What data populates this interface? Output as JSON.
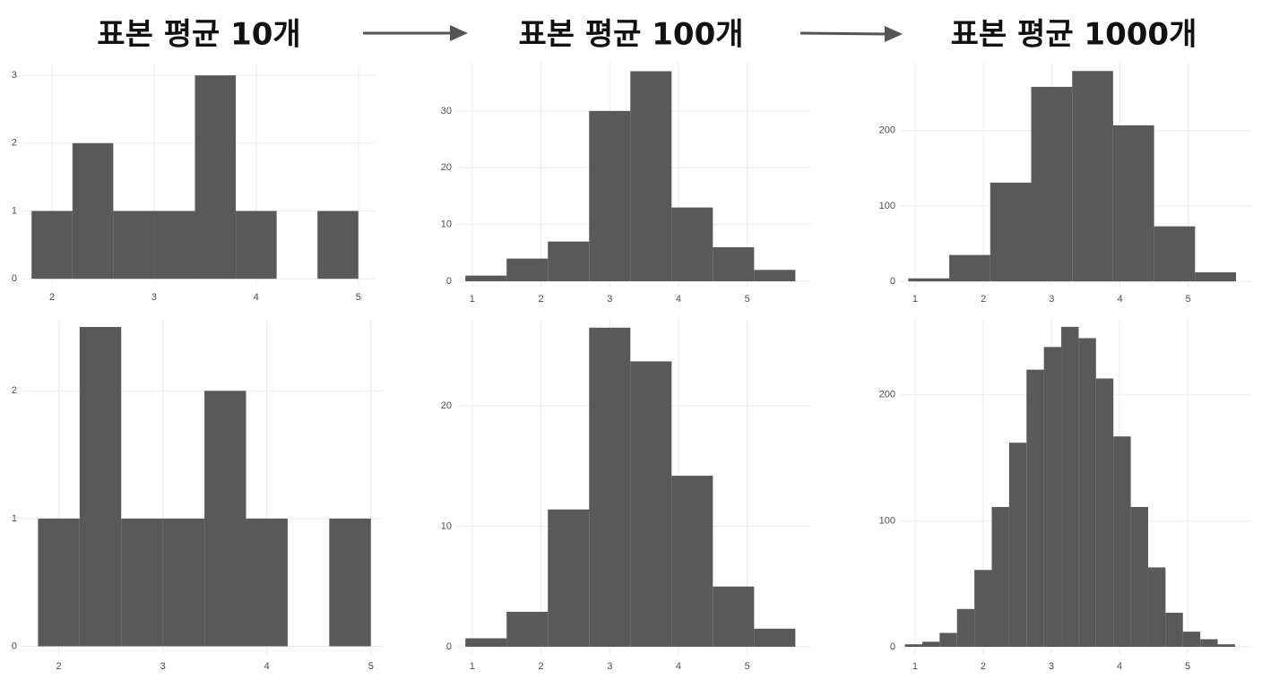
{
  "titles": [
    "표본 평균 10개",
    "표본 평균 100개",
    "표본 평균 1000개"
  ],
  "chart_data": [
    {
      "type": "histogram",
      "color": "#595959",
      "grid": true,
      "bins": [
        1.8,
        2.2,
        2.6,
        3.0,
        3.4,
        3.8,
        4.2,
        4.6,
        5.0
      ],
      "values": [
        1,
        2,
        1,
        1,
        3,
        1,
        0,
        1
      ],
      "xlim": [
        1.71,
        5.16
      ],
      "ylim": [
        -0.09,
        3.16
      ],
      "xticks": [
        2,
        3,
        4,
        5
      ],
      "yticks": [
        0,
        1,
        2,
        3
      ]
    },
    {
      "type": "histogram",
      "color": "#595959",
      "grid": true,
      "bins": [
        0.9,
        1.5,
        2.1,
        2.7,
        3.3,
        3.9,
        4.5,
        5.1,
        5.7
      ],
      "values": [
        1,
        4,
        7,
        30,
        37,
        13,
        6,
        2
      ],
      "xlim": [
        0.78,
        5.93
      ],
      "ylim": [
        -0.95,
        38.5
      ],
      "xticks": [
        1,
        2,
        3,
        4,
        5
      ],
      "yticks": [
        0,
        10,
        20,
        30
      ]
    },
    {
      "type": "histogram",
      "color": "#595959",
      "grid": true,
      "bins": [
        0.9,
        1.5,
        2.1,
        2.7,
        3.3,
        3.9,
        4.5,
        5.1,
        5.7
      ],
      "values": [
        4,
        35,
        131,
        258,
        279,
        207,
        73,
        12
      ],
      "xlim": [
        0.79,
        5.91
      ],
      "ylim": [
        -7,
        290
      ],
      "xticks": [
        1,
        2,
        3,
        4,
        5
      ],
      "yticks": [
        0,
        100,
        200
      ]
    },
    {
      "type": "histogram",
      "color": "#595959",
      "grid": true,
      "bins": [
        1.8,
        2.2,
        2.6,
        3.0,
        3.4,
        3.8,
        4.2,
        4.6,
        5.0
      ],
      "values": [
        1,
        2.5,
        1,
        1,
        2,
        1,
        0,
        1
      ],
      "xlim": [
        1.65,
        5.14
      ],
      "ylim": [
        -0.06,
        2.57
      ],
      "xticks": [
        2,
        3,
        4,
        5
      ],
      "yticks": [
        0,
        1,
        2
      ]
    },
    {
      "type": "histogram",
      "color": "#595959",
      "grid": true,
      "bins": [
        0.9,
        1.5,
        2.1,
        2.7,
        3.3,
        3.9,
        4.5,
        5.1,
        5.7
      ],
      "values": [
        0.7,
        2.9,
        11.4,
        26.5,
        23.7,
        14.2,
        5,
        1.5
      ],
      "xlim": [
        0.78,
        5.93
      ],
      "ylim": [
        -0.6,
        27.3
      ],
      "xticks": [
        1,
        2,
        3,
        4,
        5
      ],
      "yticks": [
        0,
        10,
        20
      ]
    },
    {
      "type": "histogram",
      "color": "#595959",
      "grid": true,
      "bins": [
        0.85,
        1.105,
        1.36,
        1.615,
        1.87,
        2.125,
        2.38,
        2.635,
        2.89,
        3.145,
        3.4,
        3.655,
        3.91,
        4.165,
        4.42,
        4.675,
        4.93,
        5.185,
        5.44,
        5.695
      ],
      "values": [
        2,
        4,
        11,
        30,
        61,
        111,
        162,
        220,
        238,
        254,
        245,
        213,
        167,
        111,
        63,
        27,
        12,
        6,
        2
      ],
      "xlim": [
        0.79,
        5.92
      ],
      "ylim": [
        -5.7,
        261
      ],
      "xticks": [
        1,
        2,
        3,
        4,
        5
      ],
      "yticks": [
        0,
        100,
        200
      ]
    }
  ]
}
